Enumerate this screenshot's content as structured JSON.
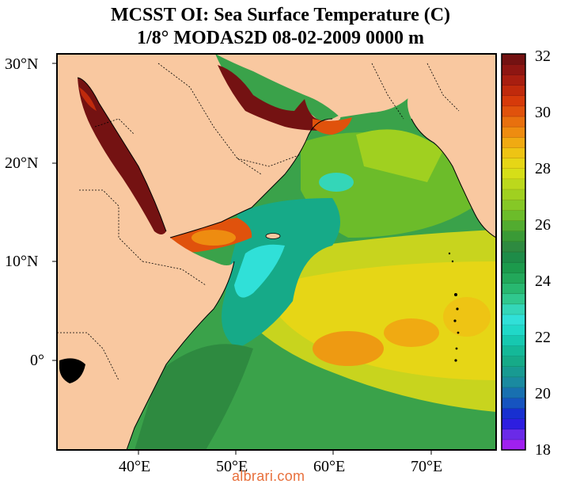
{
  "title": {
    "line1": "MCSST OI:  Sea Surface Temperature (C)",
    "line2": "1/8° MODAS2D 08-02-2009 0000 m"
  },
  "map": {
    "lat_labels": [
      "30°N",
      "20°N",
      "10°N",
      "0°"
    ],
    "lon_labels": [
      "40°E",
      "50°E",
      "60°E",
      "70°E"
    ],
    "land_color": "#f9c8a0",
    "frame_color": "#000000"
  },
  "colorbar": {
    "min": 18,
    "max": 32,
    "tick_labels": [
      "32",
      "30",
      "28",
      "26",
      "24",
      "22",
      "20",
      "18"
    ],
    "colors": [
      "#a020f0",
      "#6a2ae8",
      "#2d1ee0",
      "#1830d0",
      "#1654c0",
      "#1870b0",
      "#1a8aa0",
      "#189a92",
      "#16aa88",
      "#14b898",
      "#16c8b0",
      "#20d8c8",
      "#30e0d8",
      "#34d6b8",
      "#30c88e",
      "#28b870",
      "#22a85a",
      "#1c9a4c",
      "#1e8c48",
      "#2e8a40",
      "#3a9a36",
      "#52ac30",
      "#6cbc2a",
      "#86c826",
      "#a0d020",
      "#bcd81c",
      "#d6de18",
      "#e6d616",
      "#eec414",
      "#f0aa12",
      "#ee8c10",
      "#e8700e",
      "#e0520c",
      "#d63a0a",
      "#c02a0c",
      "#a81e10",
      "#8e1612",
      "#741212"
    ]
  },
  "watermark": "albrari.com",
  "watermark_color": "#e8703c"
}
